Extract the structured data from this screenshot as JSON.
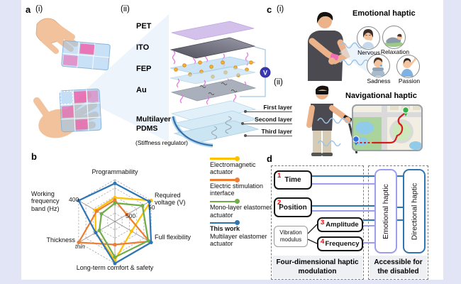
{
  "colors": {
    "background_band": "#e2e5f5",
    "dark_blue_accent": "#2E75B6",
    "periwinkle_accent": "#9D9DF0",
    "red_marker": "#FF0000"
  },
  "panel_a": {
    "label": "a",
    "sub_labels": {
      "i": "(i)",
      "ii": "(ii)"
    },
    "layer_labels": [
      "PET",
      "ITO",
      "FEP",
      "Au"
    ],
    "pdms_label": "Multilayer PDMS",
    "pdms_note": "(Stiffness regulator)",
    "voltage_symbol": "V",
    "sublayers": [
      "First layer",
      "Second layer",
      "Third layer"
    ]
  },
  "panel_b": {
    "label": "b"
  },
  "chart_data": {
    "type": "radar",
    "categories": [
      "Programmability",
      "Required voltage (V)",
      "Full flexibility",
      "Long-term comfort & safety",
      "Thickness",
      "Working frequency band (Hz)"
    ],
    "scale": {
      "min": 0,
      "max": 1,
      "rings": 5
    },
    "grid": "dashed-hexagon",
    "legend_position": "right",
    "annotations": {
      "freq_outer": "400",
      "volt_outer": "50",
      "volt_inner": "500",
      "thickness_outer": "thin"
    },
    "series": [
      {
        "name": "Electromagnetic actuator",
        "color": "#FFC000",
        "values": [
          0.57,
          1.0,
          0.46,
          0.92,
          0.53,
          0.54
        ]
      },
      {
        "name": "Electric stimulation interface",
        "color": "#ED7D31",
        "values": [
          0.51,
          0.33,
          0.95,
          0.55,
          1.0,
          0.5
        ]
      },
      {
        "name": "Mono-layer elastomer actuator",
        "color": "#70AD47",
        "values": [
          0.44,
          0.76,
          0.92,
          0.85,
          0.43,
          0.37
        ]
      },
      {
        "name_bold": "This work",
        "name": "Multilayer elastomer actuator",
        "color": "#2E75B6",
        "values": [
          0.91,
          0.95,
          1.0,
          1.0,
          0.53,
          1.0
        ]
      }
    ]
  },
  "panel_c": {
    "label": "c",
    "sub_labels": {
      "i": "(i)",
      "ii": "(ii)"
    },
    "emotional": {
      "title": "Emotional haptic",
      "emotions": [
        "Nervous",
        "Relaxation",
        "Sadness",
        "Passion"
      ]
    },
    "navigational": {
      "title": "Navigational haptic"
    }
  },
  "panel_d": {
    "label": "d",
    "inputs": [
      {
        "num": "1",
        "label": "Time"
      },
      {
        "num": "2",
        "label": "Position"
      },
      {
        "num": "3",
        "label": "Amplitude"
      },
      {
        "num": "4",
        "label": "Frequency"
      }
    ],
    "modulator": "Vibration modulus",
    "outputs": [
      "Emotional haptic",
      "Directional haptic"
    ],
    "left_caption": "Four-dimensional haptic modulation",
    "right_caption": "Accessible for the disabled"
  }
}
